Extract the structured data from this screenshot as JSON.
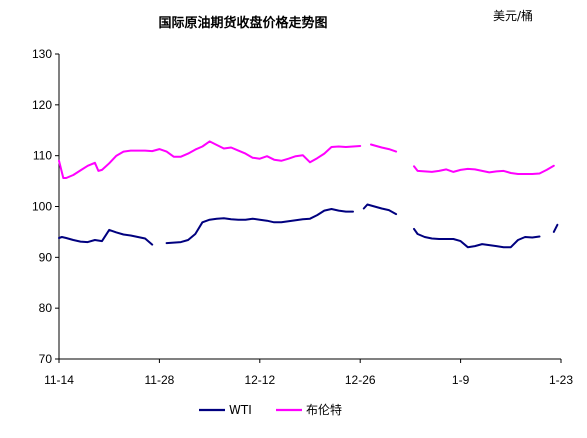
{
  "chart_data": {
    "type": "line",
    "title": "国际原油期货收盘价格走势图",
    "unit": "美元/桶",
    "xlabel": "",
    "ylabel": "",
    "ylim": [
      70,
      130
    ],
    "y_ticks": [
      70,
      80,
      90,
      100,
      110,
      120,
      130
    ],
    "x_tick_labels": [
      "11-14",
      "11-28",
      "12-12",
      "12-26",
      "1-9",
      "1-23"
    ],
    "x_range_days": [
      0,
      70
    ],
    "grid": false,
    "legend": "bottom",
    "colors": {
      "WTI": "#00007f",
      "Brent": "#ff00ff"
    },
    "series": [
      {
        "name": "WTI",
        "segments": [
          [
            [
              0,
              93.8
            ],
            [
              0.4,
              94.0
            ],
            [
              1,
              93.8
            ],
            [
              2,
              93.4
            ],
            [
              3,
              93.1
            ],
            [
              4,
              93.0
            ],
            [
              5,
              93.4
            ],
            [
              6,
              93.2
            ],
            [
              7,
              95.4
            ],
            [
              8,
              94.9
            ],
            [
              9,
              94.5
            ],
            [
              10,
              94.3
            ],
            [
              11,
              94.0
            ],
            [
              12,
              93.7
            ],
            [
              13,
              92.5
            ]
          ],
          [
            [
              15,
              92.8
            ],
            [
              16,
              92.9
            ],
            [
              17,
              93.0
            ],
            [
              18,
              93.4
            ],
            [
              19,
              94.6
            ],
            [
              20,
              96.9
            ],
            [
              21,
              97.4
            ],
            [
              22,
              97.6
            ],
            [
              23,
              97.7
            ],
            [
              24,
              97.5
            ],
            [
              25,
              97.4
            ],
            [
              26,
              97.4
            ],
            [
              27,
              97.6
            ],
            [
              28,
              97.4
            ],
            [
              29,
              97.2
            ],
            [
              30,
              96.9
            ],
            [
              31,
              96.9
            ],
            [
              32,
              97.1
            ],
            [
              33,
              97.3
            ],
            [
              34,
              97.5
            ],
            [
              35,
              97.6
            ],
            [
              36,
              98.3
            ],
            [
              37,
              99.2
            ],
            [
              38,
              99.5
            ],
            [
              39,
              99.2
            ],
            [
              40,
              99.0
            ],
            [
              41,
              99.0
            ]
          ],
          [
            [
              42.5,
              99.6
            ],
            [
              43,
              100.4
            ],
            [
              44,
              100.0
            ],
            [
              45,
              99.6
            ],
            [
              46,
              99.3
            ],
            [
              47,
              98.5
            ]
          ],
          [
            [
              49.5,
              95.6
            ],
            [
              50,
              94.6
            ],
            [
              51,
              94.0
            ],
            [
              52,
              93.7
            ],
            [
              53,
              93.6
            ],
            [
              54,
              93.6
            ],
            [
              55,
              93.6
            ],
            [
              56,
              93.2
            ],
            [
              57,
              92.0
            ],
            [
              58,
              92.2
            ],
            [
              59,
              92.6
            ],
            [
              60,
              92.4
            ],
            [
              61,
              92.2
            ],
            [
              62,
              92.0
            ],
            [
              63,
              92.0
            ],
            [
              64,
              93.4
            ],
            [
              65,
              94.0
            ],
            [
              66,
              93.9
            ],
            [
              67,
              94.1
            ]
          ],
          [
            [
              69,
              95.0
            ],
            [
              69.5,
              96.4
            ]
          ]
        ]
      },
      {
        "name": "布伦特",
        "segments": [
          [
            [
              0,
              109.0
            ],
            [
              0.6,
              105.6
            ],
            [
              1,
              105.6
            ],
            [
              2,
              106.2
            ],
            [
              3,
              107.1
            ],
            [
              4,
              108.0
            ],
            [
              5,
              108.6
            ],
            [
              5.5,
              107.0
            ],
            [
              6,
              107.2
            ],
            [
              7,
              108.5
            ],
            [
              8,
              110.0
            ],
            [
              9,
              110.8
            ],
            [
              10,
              111.0
            ],
            [
              11,
              111.0
            ],
            [
              12,
              111.0
            ],
            [
              13,
              110.9
            ],
            [
              14,
              111.3
            ],
            [
              15,
              110.8
            ],
            [
              16,
              109.8
            ],
            [
              17,
              109.8
            ],
            [
              18,
              110.4
            ],
            [
              19,
              111.2
            ],
            [
              20,
              111.8
            ],
            [
              21,
              112.8
            ],
            [
              22,
              112.1
            ],
            [
              23,
              111.4
            ],
            [
              24,
              111.6
            ],
            [
              25,
              111.0
            ],
            [
              26,
              110.4
            ],
            [
              27,
              109.6
            ],
            [
              28,
              109.4
            ],
            [
              29,
              109.9
            ],
            [
              30,
              109.2
            ],
            [
              31,
              109.0
            ],
            [
              32,
              109.4
            ],
            [
              33,
              109.9
            ],
            [
              34,
              110.1
            ],
            [
              35,
              108.7
            ],
            [
              36,
              109.5
            ],
            [
              37,
              110.4
            ],
            [
              38,
              111.7
            ],
            [
              39,
              111.8
            ],
            [
              40,
              111.7
            ],
            [
              41,
              111.8
            ],
            [
              42,
              111.9
            ]
          ],
          [
            [
              43.5,
              112.2
            ],
            [
              44,
              112.0
            ],
            [
              45,
              111.6
            ],
            [
              46,
              111.3
            ],
            [
              47,
              110.8
            ]
          ],
          [
            [
              49.5,
              107.9
            ],
            [
              50,
              107.0
            ],
            [
              51,
              106.9
            ],
            [
              52,
              106.8
            ],
            [
              53,
              107.0
            ],
            [
              54,
              107.3
            ],
            [
              55,
              106.8
            ],
            [
              56,
              107.2
            ],
            [
              57,
              107.4
            ],
            [
              58,
              107.3
            ],
            [
              59,
              107.0
            ],
            [
              60,
              106.7
            ],
            [
              61,
              106.9
            ],
            [
              62,
              107.0
            ],
            [
              63,
              106.6
            ],
            [
              64,
              106.4
            ],
            [
              65,
              106.4
            ],
            [
              66,
              106.4
            ],
            [
              67,
              106.5
            ],
            [
              68,
              107.2
            ],
            [
              69,
              108.0
            ]
          ]
        ]
      }
    ]
  }
}
